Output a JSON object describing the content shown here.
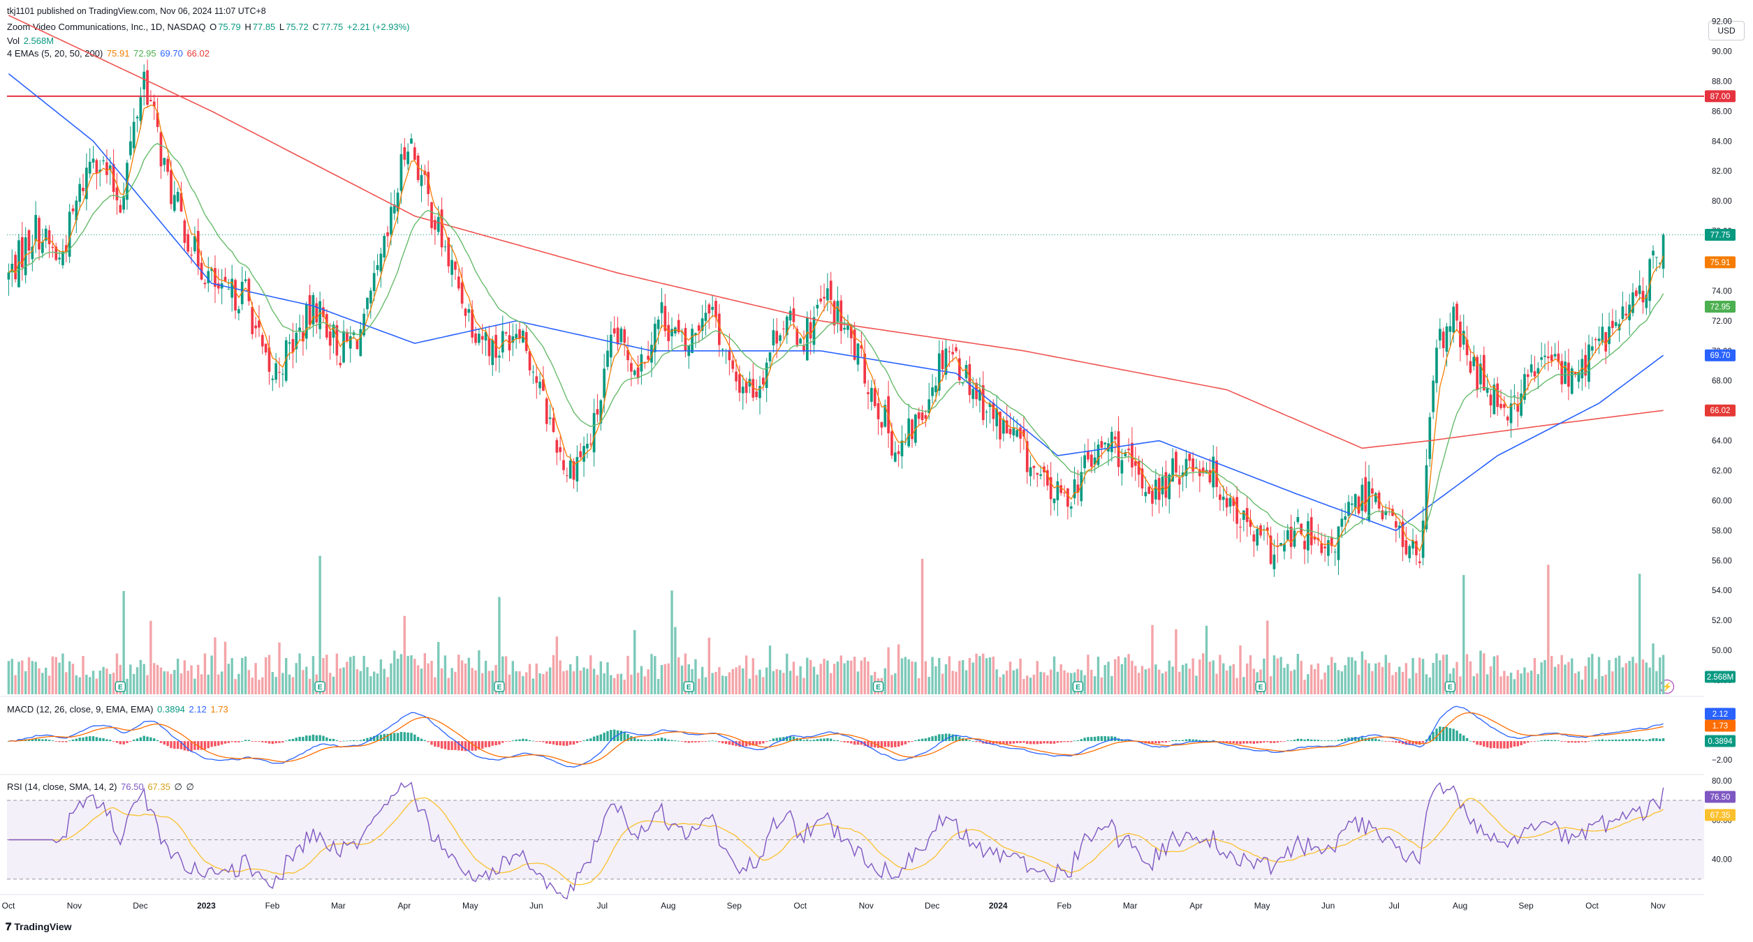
{
  "header": {
    "published": "tkj1101 published on TradingView.com, Nov 06, 2024 11:07 UTC+8",
    "symbol": "Zoom Video Communications, Inc., 1D, NASDAQ",
    "ohlc": {
      "o_label": "O",
      "o": "75.79",
      "h_label": "H",
      "h": "77.85",
      "l_label": "L",
      "l": "75.72",
      "c_label": "C",
      "c": "77.75",
      "change": "+2.21 (+2.93%)"
    },
    "vol_label": "Vol",
    "vol_value": "2.568M",
    "ema_label": "4 EMAs (5, 20, 50, 200)",
    "ema_values": [
      "75.91",
      "72.95",
      "69.70",
      "66.02"
    ],
    "macd_label": "MACD (12, 26, close, 9, EMA, EMA)",
    "macd_values": [
      "0.3894",
      "2.12",
      "1.73"
    ],
    "rsi_label": "RSI (14, close, SMA, 14, 2)",
    "rsi_values": [
      "76.50",
      "67.35",
      "∅",
      "∅"
    ]
  },
  "currency": "USD",
  "brand": {
    "logo": "𝟕",
    "name": "TradingView"
  },
  "colors": {
    "up": "#089981",
    "down": "#f23645",
    "vol_up": "#7cc9b9",
    "vol_down": "#f4a3a8",
    "ema5": "#f57c00",
    "ema20": "#66bb6a",
    "ema50": "#2962ff",
    "ema200": "#ef5350",
    "hline": "#e5323e",
    "rsi": "#7e57c2",
    "rsi_ma": "#fbc02d",
    "macd": "#2962ff",
    "signal": "#ff6d00"
  },
  "price_badges": [
    {
      "label": "87.00",
      "value": 87.0,
      "color": "#e5323e"
    },
    {
      "label": "77.75",
      "value": 77.75,
      "color": "#089981"
    },
    {
      "label": "75.91",
      "value": 75.91,
      "color": "#f57c00"
    },
    {
      "label": "72.95",
      "value": 72.95,
      "color": "#4caf50"
    },
    {
      "label": "69.70",
      "value": 69.7,
      "color": "#2962ff"
    },
    {
      "label": "66.02",
      "value": 66.02,
      "color": "#e53935"
    }
  ],
  "volume_badge": {
    "label": "2.568M",
    "color": "#089981"
  },
  "macd_badges": [
    {
      "label": "2.12",
      "value": 2.12,
      "color": "#2962ff"
    },
    {
      "label": "1.73",
      "value": 1.73,
      "color": "#ff6d00"
    },
    {
      "label": "0.3894",
      "value": 0.3894,
      "color": "#089981"
    }
  ],
  "rsi_badges": [
    {
      "label": "76.50",
      "value": 76.5,
      "color": "#7e57c2"
    },
    {
      "label": "67.35",
      "value": 67.35,
      "color": "#fbc02d"
    }
  ],
  "chart_data": {
    "type": "line",
    "title": "Zoom Video Communications, Inc., 1D, NASDAQ",
    "price_axis": {
      "ticks": [
        "92.00",
        "90.00",
        "88.00",
        "86.00",
        "84.00",
        "82.00",
        "80.00",
        "78.00",
        "76.00",
        "74.00",
        "72.00",
        "70.00",
        "68.00",
        "66.00",
        "64.00",
        "62.00",
        "60.00",
        "58.00",
        "56.00",
        "54.00",
        "52.00",
        "50.00",
        "48.00"
      ],
      "ylim": [
        47.3,
        92.4
      ]
    },
    "macd_axis": {
      "ticks": [
        "2.00",
        "−2.00"
      ],
      "ylim": [
        -3.4,
        4.3
      ]
    },
    "rsi_axis": {
      "ticks": [
        "80.00",
        "60.00",
        "40.00"
      ],
      "ylim": [
        25,
        81
      ],
      "band": [
        30,
        70
      ],
      "mid": 50
    },
    "time_axis": {
      "labels": [
        "Oct",
        "Nov",
        "Dec",
        "2023",
        "Feb",
        "Mar",
        "Apr",
        "May",
        "Jun",
        "Jul",
        "Aug",
        "Sep",
        "Oct",
        "Nov",
        "Dec",
        "2024",
        "Feb",
        "Mar",
        "Apr",
        "May",
        "Jun",
        "Jul",
        "Aug",
        "Sep",
        "Oct",
        "Nov"
      ],
      "bold": [
        "2023",
        "2024"
      ]
    },
    "horizontal_line": 87.0,
    "last_close": 77.75,
    "earnings_markers": [
      "2022-11",
      "2023-02",
      "2023-05",
      "2023-08",
      "2023-11",
      "2024-02",
      "2024-05",
      "2024-08"
    ],
    "earnings_label": "E",
    "price_path": [
      [
        0,
        75.0
      ],
      [
        8,
        78.2
      ],
      [
        15,
        76.0
      ],
      [
        25,
        83.5
      ],
      [
        33,
        80.0
      ],
      [
        40,
        88.5
      ],
      [
        47,
        81.2
      ],
      [
        55,
        76.5
      ],
      [
        63,
        73.5
      ],
      [
        70,
        74.0
      ],
      [
        77,
        68.0
      ],
      [
        84,
        70.5
      ],
      [
        91,
        73.0
      ],
      [
        98,
        70.0
      ],
      [
        105,
        71.5
      ],
      [
        112,
        77.5
      ],
      [
        118,
        84.5
      ],
      [
        124,
        80.0
      ],
      [
        130,
        76.0
      ],
      [
        137,
        72.0
      ],
      [
        144,
        70.0
      ],
      [
        151,
        72.0
      ],
      [
        158,
        66.5
      ],
      [
        165,
        62.0
      ],
      [
        172,
        64.0
      ],
      [
        179,
        71.0
      ],
      [
        186,
        69.0
      ],
      [
        193,
        72.5
      ],
      [
        200,
        70.0
      ],
      [
        207,
        73.5
      ],
      [
        214,
        68.0
      ],
      [
        221,
        67.5
      ],
      [
        228,
        72.0
      ],
      [
        235,
        71.0
      ],
      [
        242,
        73.5
      ],
      [
        249,
        70.5
      ],
      [
        256,
        67.0
      ],
      [
        263,
        63.0
      ],
      [
        270,
        66.0
      ],
      [
        277,
        70.5
      ],
      [
        284,
        68.0
      ],
      [
        291,
        65.5
      ],
      [
        298,
        64.0
      ],
      [
        305,
        61.0
      ],
      [
        312,
        60.0
      ],
      [
        319,
        62.5
      ],
      [
        326,
        64.0
      ],
      [
        333,
        61.5
      ],
      [
        340,
        60.5
      ],
      [
        347,
        62.5
      ],
      [
        354,
        62.5
      ],
      [
        361,
        60.0
      ],
      [
        368,
        57.5
      ],
      [
        375,
        56.5
      ],
      [
        382,
        58.0
      ],
      [
        389,
        56.0
      ],
      [
        396,
        59.0
      ],
      [
        403,
        61.0
      ],
      [
        410,
        58.0
      ],
      [
        417,
        56.0
      ],
      [
        422,
        70.0
      ],
      [
        427,
        72.0
      ],
      [
        432,
        69.0
      ],
      [
        438,
        67.5
      ],
      [
        444,
        66.0
      ],
      [
        450,
        68.5
      ],
      [
        456,
        69.5
      ],
      [
        462,
        68.0
      ],
      [
        468,
        70.0
      ],
      [
        474,
        71.5
      ],
      [
        480,
        73.0
      ],
      [
        486,
        75.5
      ],
      [
        489,
        77.75
      ]
    ],
    "ema200_path": [
      [
        0,
        92.4
      ],
      [
        60,
        86.0
      ],
      [
        120,
        79.0
      ],
      [
        180,
        75.2
      ],
      [
        240,
        72.0
      ],
      [
        300,
        70.0
      ],
      [
        360,
        67.4
      ],
      [
        400,
        63.5
      ],
      [
        420,
        64.0
      ],
      [
        460,
        65.2
      ],
      [
        489,
        66.02
      ]
    ],
    "ema50_path": [
      [
        0,
        88.5
      ],
      [
        25,
        84.0
      ],
      [
        60,
        74.5
      ],
      [
        90,
        73.0
      ],
      [
        120,
        70.5
      ],
      [
        150,
        72.0
      ],
      [
        190,
        70.0
      ],
      [
        240,
        70.0
      ],
      [
        280,
        68.5
      ],
      [
        310,
        63.0
      ],
      [
        340,
        64.0
      ],
      [
        380,
        60.5
      ],
      [
        410,
        58.0
      ],
      [
        440,
        63.0
      ],
      [
        470,
        66.5
      ],
      [
        489,
        69.7
      ]
    ],
    "volume_axis": {
      "ylim": [
        0,
        12.0
      ]
    },
    "rsi_recent": 76.5,
    "macd_recent": {
      "macd": 2.12,
      "signal": 1.73,
      "hist": 0.3894
    }
  }
}
